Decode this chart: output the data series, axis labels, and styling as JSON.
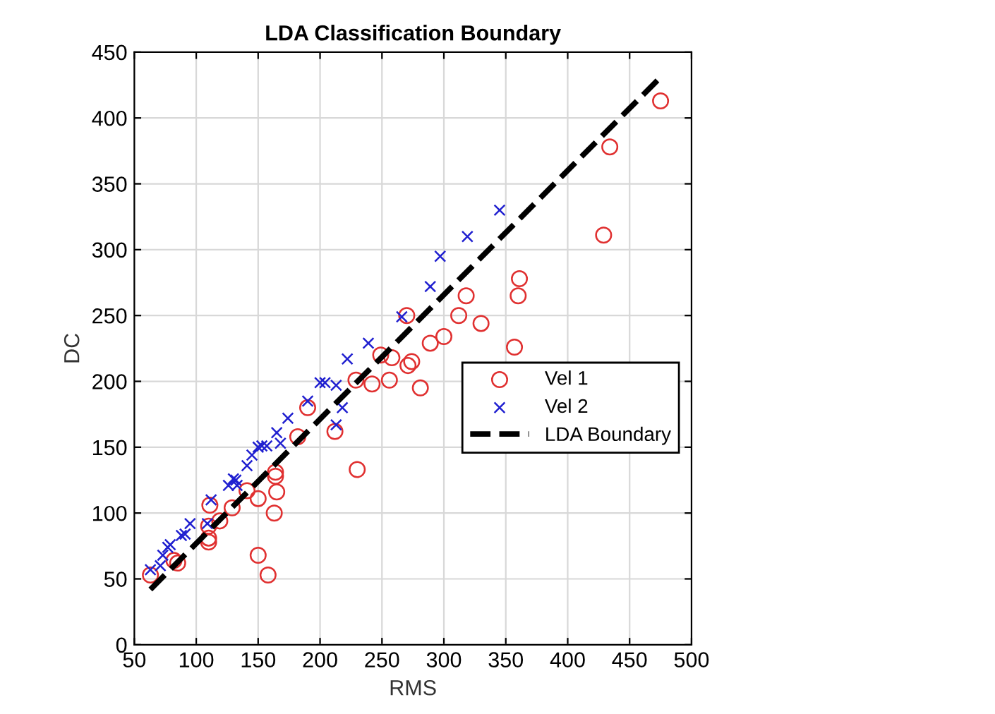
{
  "chart_data": {
    "type": "scatter",
    "title": "LDA Classification Boundary",
    "xlabel": "RMS",
    "ylabel": "DC",
    "xlim": [
      50,
      500
    ],
    "xticks": [
      50,
      100,
      150,
      200,
      250,
      300,
      350,
      400,
      450,
      500
    ],
    "ylim": [
      0,
      450
    ],
    "yticks": [
      0,
      50,
      100,
      150,
      200,
      250,
      300,
      350,
      400,
      450
    ],
    "grid": true,
    "legend": "center right",
    "series": [
      {
        "name": "Vel 1",
        "marker": "circle",
        "color": "#e03030",
        "x": [
          63,
          82,
          85,
          110,
          110,
          110,
          111,
          119,
          129,
          141,
          150,
          150,
          158,
          163,
          165,
          164,
          164,
          182,
          190,
          212,
          230,
          229,
          242,
          249,
          256,
          258,
          271,
          274,
          281,
          289,
          300,
          312,
          318,
          330,
          270,
          475,
          434,
          429,
          361,
          360,
          357
        ],
        "values": [
          53,
          64,
          62,
          90,
          81,
          78,
          106,
          94,
          104,
          117,
          111,
          68,
          53,
          100,
          116,
          131,
          128,
          158,
          180,
          162,
          133,
          201,
          198,
          220,
          201,
          218,
          212,
          215,
          195,
          229,
          234,
          250,
          265,
          244,
          250,
          413,
          378,
          311,
          278,
          265,
          226
        ]
      },
      {
        "name": "Vel 2",
        "marker": "cross",
        "color": "#2020d0",
        "x": [
          63,
          71,
          73,
          77,
          79,
          88,
          91,
          95,
          109,
          112,
          126,
          130,
          132,
          133,
          141,
          145,
          150,
          153,
          157,
          165,
          168,
          174,
          190,
          200,
          204,
          213,
          218,
          213,
          222,
          239,
          266,
          289,
          297,
          319,
          345
        ],
        "values": [
          57,
          60,
          68,
          74,
          76,
          83,
          84,
          92,
          92,
          110,
          121,
          126,
          125,
          121,
          136,
          144,
          150,
          151,
          151,
          161,
          153,
          172,
          185,
          199,
          199,
          197,
          180,
          167,
          217,
          229,
          249,
          272,
          295,
          310,
          330
        ]
      },
      {
        "name": "LDA Boundary",
        "type": "line",
        "line_style": "dashed",
        "marker": "none",
        "color": "#000000",
        "x": [
          63,
          474
        ],
        "values": [
          42,
          430
        ]
      }
    ]
  }
}
